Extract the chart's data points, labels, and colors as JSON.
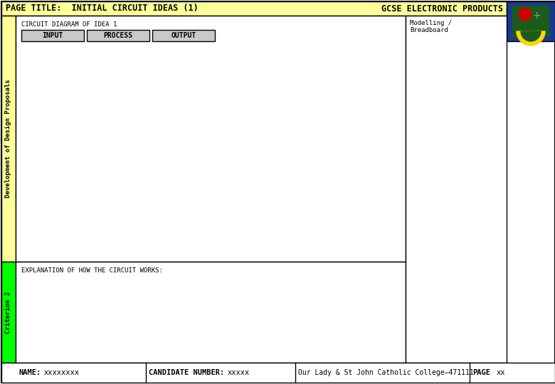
{
  "page_title_left": "PAGE TITLE:  INITIAL CIRCUIT IDEAS (1)",
  "page_title_right": "GCSE ELECTRONIC PRODUCTS",
  "header_bg": "#FFFF99",
  "header_text_color": "#000000",
  "left_band_yellow_text": "Development of Design Proposals",
  "left_band_yellow_bg": "#FFFF99",
  "left_band_green_text": "Criterion 2",
  "left_band_green_bg": "#00FF00",
  "main_label": "CIRCUIT DIAGRAM OF IDEA 1",
  "ipo_labels": [
    "INPUT",
    "PROCESS",
    "OUTPUT"
  ],
  "ipo_box_bg": "#C8C8C8",
  "right_panel_text": "Modelling /\nBreadboard",
  "explanation_label": "EXPLANATION OF HOW THE CIRCUIT WORKS:",
  "footer_name_label": "NAME:",
  "footer_name_value": "xxxxxxxx",
  "footer_candidate_label": "CANDIDATE NUMBER:",
  "footer_candidate_value": "xxxxx",
  "footer_school": "Our Lady & St John Catholic College—471111",
  "footer_page_label": "PAGE",
  "footer_page_value": "xx",
  "border_color": "#000000",
  "white": "#FFFFFF",
  "logo_bg": "#1a3a8f",
  "logo_dark_green": "#1a5c1a",
  "logo_red": "#cc0000",
  "logo_gold": "#FFD700"
}
